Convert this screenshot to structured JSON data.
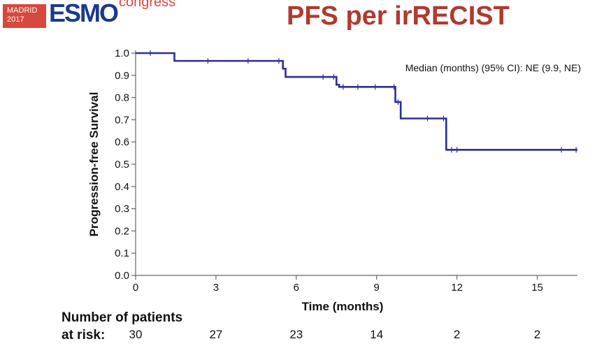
{
  "header": {
    "logo_city": "MADRID",
    "logo_year": "2017",
    "logo_word": "ESMO",
    "logo_congress": "congress",
    "title": "PFS per irRECIST"
  },
  "colors": {
    "curve": "#2b2f9a",
    "title": "#b03a2e",
    "logo_red": "#d9483c",
    "logo_blue": "#1a3a8c"
  },
  "chart_data": {
    "type": "line",
    "subtype": "kaplan-meier-step",
    "xlabel": "Time (months)",
    "ylabel": "Progression-free Survival",
    "xlim": [
      0,
      16.5
    ],
    "ylim": [
      0,
      1.0
    ],
    "x_ticks": [
      0,
      3,
      6,
      9,
      12,
      15
    ],
    "y_ticks": [
      0.0,
      0.1,
      0.2,
      0.3,
      0.4,
      0.5,
      0.6,
      0.7,
      0.8,
      0.9,
      1.0
    ],
    "grid": false,
    "annotation": "Median (months) (95% CI): NE (9.9, NE)",
    "series": [
      {
        "steps": [
          {
            "x": 0,
            "y": 1.0
          },
          {
            "x": 1.45,
            "y": 0.965
          },
          {
            "x": 5.5,
            "y": 0.93
          },
          {
            "x": 5.6,
            "y": 0.893
          },
          {
            "x": 7.5,
            "y": 0.858
          },
          {
            "x": 7.6,
            "y": 0.848
          },
          {
            "x": 9.7,
            "y": 0.78
          },
          {
            "x": 9.9,
            "y": 0.706
          },
          {
            "x": 11.6,
            "y": 0.565
          },
          {
            "x": 16.5,
            "y": 0.565
          }
        ],
        "censored": [
          {
            "x": 0.55,
            "y": 1.0
          },
          {
            "x": 2.7,
            "y": 0.965
          },
          {
            "x": 4.2,
            "y": 0.965
          },
          {
            "x": 5.35,
            "y": 0.965
          },
          {
            "x": 7.0,
            "y": 0.893
          },
          {
            "x": 7.4,
            "y": 0.893
          },
          {
            "x": 7.75,
            "y": 0.848
          },
          {
            "x": 8.3,
            "y": 0.848
          },
          {
            "x": 8.95,
            "y": 0.848
          },
          {
            "x": 9.65,
            "y": 0.848
          },
          {
            "x": 9.8,
            "y": 0.78
          },
          {
            "x": 10.9,
            "y": 0.706
          },
          {
            "x": 11.5,
            "y": 0.706
          },
          {
            "x": 11.8,
            "y": 0.565
          },
          {
            "x": 12.0,
            "y": 0.565
          },
          {
            "x": 15.9,
            "y": 0.565
          },
          {
            "x": 16.45,
            "y": 0.565
          }
        ]
      }
    ],
    "at_risk": {
      "label_line1": "Number of patients",
      "label_line2": "at risk:",
      "times": [
        0,
        3,
        6,
        9,
        12,
        15
      ],
      "counts": [
        "30",
        "27",
        "23",
        "14",
        "2",
        "2"
      ]
    }
  }
}
